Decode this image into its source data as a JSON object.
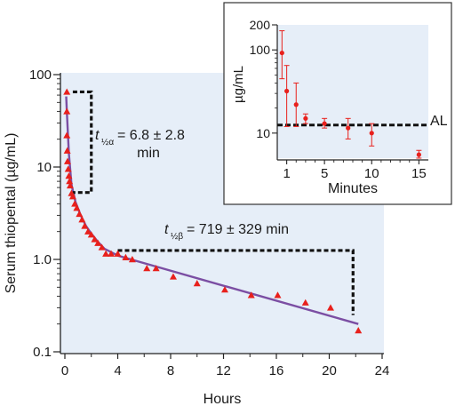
{
  "chart_data": [
    {
      "type": "scatter",
      "subtype": "semi-log decay",
      "xlabel": "Hours",
      "ylabel": "Serum thiopental (µg/mL)",
      "xlim": [
        0,
        24
      ],
      "ylim": [
        0.1,
        100
      ],
      "y_scale": "log",
      "x_ticks": [
        "0",
        "4",
        "8",
        "12",
        "16",
        "20",
        "24"
      ],
      "y_ticks": [
        "0.1",
        "1.0",
        "10",
        "100"
      ],
      "grid": false,
      "points": [
        [
          0.15,
          65
        ],
        [
          0.15,
          40
        ],
        [
          0.15,
          22
        ],
        [
          0.18,
          15
        ],
        [
          0.2,
          11.5
        ],
        [
          0.25,
          9.5
        ],
        [
          0.3,
          8
        ],
        [
          0.35,
          7
        ],
        [
          0.4,
          6.3
        ],
        [
          0.5,
          5.2
        ],
        [
          0.6,
          4.8
        ],
        [
          0.75,
          4
        ],
        [
          0.9,
          3.6
        ],
        [
          1.1,
          3.1
        ],
        [
          1.3,
          2.7
        ],
        [
          1.5,
          2.3
        ],
        [
          1.75,
          2.0
        ],
        [
          2.0,
          1.85
        ],
        [
          2.25,
          1.65
        ],
        [
          2.5,
          1.5
        ],
        [
          2.8,
          1.35
        ],
        [
          3.1,
          1.15
        ],
        [
          3.5,
          1.15
        ],
        [
          4.0,
          1.15
        ],
        [
          4.6,
          1.05
        ],
        [
          5.1,
          1.0
        ],
        [
          6.2,
          0.8
        ],
        [
          6.9,
          0.8
        ],
        [
          8.2,
          0.65
        ],
        [
          10.0,
          0.55
        ],
        [
          12.1,
          0.47
        ],
        [
          14.1,
          0.41
        ],
        [
          16.1,
          0.41
        ],
        [
          18.2,
          0.34
        ],
        [
          20.1,
          0.3
        ],
        [
          22.2,
          0.17
        ]
      ],
      "fit_curve": {
        "alpha_phase": {
          "x": [
            0.1,
            0.15,
            0.3,
            0.5,
            0.8,
            1.2,
            1.6,
            2.0,
            2.5,
            3.0,
            3.5,
            4.0,
            5.0
          ],
          "y": [
            58,
            40,
            14,
            6.5,
            4.2,
            3.0,
            2.3,
            1.9,
            1.55,
            1.3,
            1.2,
            1.1,
            1.0
          ]
        },
        "beta_phase": {
          "x": [
            5.0,
            22.2
          ],
          "y": [
            1.0,
            0.2
          ]
        }
      },
      "color_points": "#e8201c",
      "color_curve": "#7b4ea3",
      "color_plot_bg": "#e6eef8",
      "annotations": {
        "alpha_symbol": "t",
        "alpha_sub": "½α",
        "alpha_value": "= 6.8 ± 2.8",
        "alpha_unit": "min",
        "beta_symbol": "t",
        "beta_sub": "½β",
        "beta_value": "= 719 ± 329 min"
      }
    },
    {
      "type": "scatter",
      "subtype": "inset with error bars",
      "xlabel": "Minutes",
      "ylabel": "µg/mL",
      "xlim": [
        0,
        16
      ],
      "ylim": [
        5,
        200
      ],
      "y_scale": "log",
      "x_ticks": [
        "1",
        "5",
        "10",
        "15"
      ],
      "y_ticks": [
        "10",
        "100",
        "200"
      ],
      "points": [
        {
          "x": 0.5,
          "y": 92,
          "lo": 45,
          "hi": 170
        },
        {
          "x": 1.0,
          "y": 32,
          "lo": 12,
          "hi": 65
        },
        {
          "x": 2.0,
          "y": 22,
          "lo": 12,
          "hi": 40
        },
        {
          "x": 3.0,
          "y": 15,
          "lo": 13,
          "hi": 17
        },
        {
          "x": 5.0,
          "y": 13,
          "lo": 11.5,
          "hi": 15
        },
        {
          "x": 7.5,
          "y": 11.5,
          "lo": 8.5,
          "hi": 15
        },
        {
          "x": 10.0,
          "y": 10,
          "lo": 7,
          "hi": 13
        },
        {
          "x": 15.0,
          "y": 5.5,
          "lo": 5,
          "hi": 6.2
        }
      ],
      "threshold": {
        "label": "AL",
        "y": 12.5
      },
      "color_points": "#e8201c",
      "color_plot_bg": "#e6eef8"
    }
  ]
}
